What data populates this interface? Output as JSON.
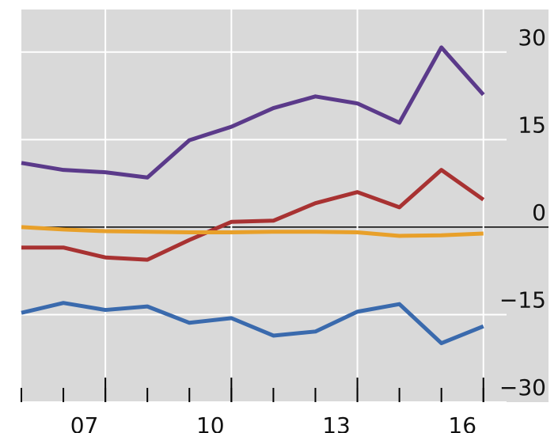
{
  "chart_data": {
    "type": "line",
    "x": [
      5.5,
      6.5,
      7.5,
      8.5,
      9.5,
      10.5,
      11.5,
      12.5,
      13.5,
      14.5,
      15.5,
      16.5
    ],
    "series": [
      {
        "color": "#5b3a8a",
        "values": [
          11.0,
          9.8,
          9.4,
          8.5,
          14.9,
          17.2,
          20.4,
          22.4,
          21.2,
          17.9,
          30.8,
          22.7
        ]
      },
      {
        "color": "#a83232",
        "values": [
          -3.5,
          -3.5,
          -5.2,
          -5.6,
          -2.2,
          0.9,
          1.1,
          4.1,
          6.0,
          3.4,
          9.8,
          4.7
        ]
      },
      {
        "color": "#e8a02a",
        "values": [
          0.0,
          -0.4,
          -0.7,
          -0.8,
          -0.9,
          -0.9,
          -0.8,
          -0.8,
          -0.9,
          -1.5,
          -1.4,
          -1.1
        ]
      },
      {
        "color": "#3a6aad",
        "values": [
          -14.7,
          -13.0,
          -14.2,
          -13.6,
          -16.4,
          -15.6,
          -18.6,
          -17.9,
          -14.5,
          -13.2,
          -19.9,
          -17.0
        ]
      }
    ],
    "xlim": [
      5.5,
      18.05
    ],
    "xticks": [
      {
        "value": 7,
        "label": "07"
      },
      {
        "value": 10,
        "label": "10"
      },
      {
        "value": 13,
        "label": "13"
      },
      {
        "value": 16,
        "label": "16"
      }
    ],
    "xgrid": [
      7.5,
      10.5,
      13.5,
      16.5
    ],
    "xminorticks": [
      5.5,
      6.5,
      7.5,
      8.5,
      9.5,
      10.5,
      11.5,
      12.5,
      13.5,
      14.5,
      15.5,
      16.5
    ],
    "ylim": [
      -30,
      37.3
    ],
    "yticks": [
      30,
      15,
      {
        "value": 0,
        "label": "0"
      },
      {
        "value": -15,
        "label": "−15"
      },
      {
        "value": -30,
        "label": "−30"
      }
    ],
    "grid": true
  }
}
